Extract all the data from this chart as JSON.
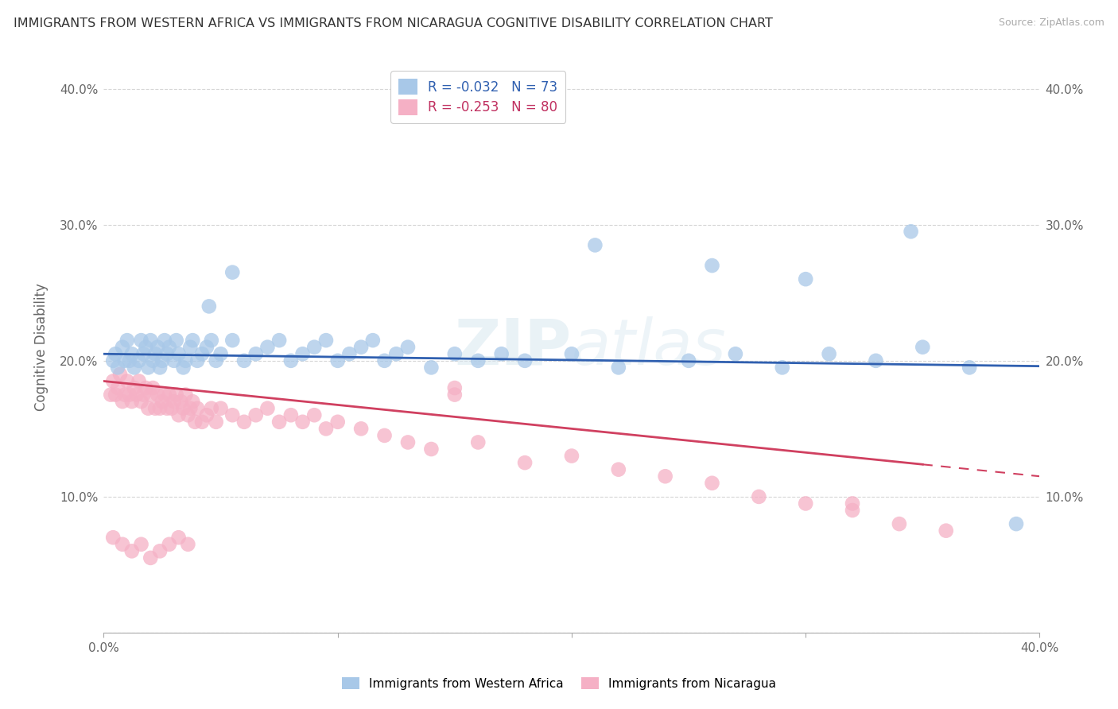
{
  "title": "IMMIGRANTS FROM WESTERN AFRICA VS IMMIGRANTS FROM NICARAGUA COGNITIVE DISABILITY CORRELATION CHART",
  "source": "Source: ZipAtlas.com",
  "ylabel": "Cognitive Disability",
  "xlim": [
    0.0,
    0.4
  ],
  "ylim": [
    0.0,
    0.42
  ],
  "ytick_vals": [
    0.0,
    0.1,
    0.2,
    0.3,
    0.4
  ],
  "xtick_vals": [
    0.0,
    0.1,
    0.2,
    0.3,
    0.4
  ],
  "legend_labels": [
    "Immigrants from Western Africa",
    "Immigrants from Nicaragua"
  ],
  "series1_color": "#a8c8e8",
  "series2_color": "#f5b0c5",
  "series1_line_color": "#3060b0",
  "series2_line_color": "#d04060",
  "R1": -0.032,
  "N1": 73,
  "R2": -0.253,
  "N2": 80,
  "watermark": "ZIPatlas",
  "background_color": "#ffffff",
  "grid_color": "#cccccc",
  "title_color": "#333333",
  "series1_x": [
    0.004,
    0.005,
    0.006,
    0.008,
    0.009,
    0.01,
    0.011,
    0.012,
    0.013,
    0.015,
    0.016,
    0.017,
    0.018,
    0.019,
    0.02,
    0.021,
    0.022,
    0.023,
    0.024,
    0.025,
    0.026,
    0.027,
    0.028,
    0.03,
    0.031,
    0.032,
    0.034,
    0.035,
    0.037,
    0.038,
    0.04,
    0.042,
    0.044,
    0.046,
    0.048,
    0.05,
    0.055,
    0.06,
    0.065,
    0.07,
    0.075,
    0.08,
    0.085,
    0.09,
    0.095,
    0.1,
    0.105,
    0.11,
    0.115,
    0.12,
    0.125,
    0.13,
    0.14,
    0.15,
    0.16,
    0.17,
    0.18,
    0.2,
    0.22,
    0.25,
    0.27,
    0.29,
    0.31,
    0.33,
    0.35,
    0.37,
    0.39,
    0.045,
    0.055,
    0.21,
    0.26,
    0.3,
    0.345
  ],
  "series1_y": [
    0.2,
    0.205,
    0.195,
    0.21,
    0.2,
    0.215,
    0.2,
    0.205,
    0.195,
    0.2,
    0.215,
    0.205,
    0.21,
    0.195,
    0.215,
    0.2,
    0.205,
    0.21,
    0.195,
    0.2,
    0.215,
    0.205,
    0.21,
    0.2,
    0.215,
    0.205,
    0.195,
    0.2,
    0.21,
    0.215,
    0.2,
    0.205,
    0.21,
    0.215,
    0.2,
    0.205,
    0.215,
    0.2,
    0.205,
    0.21,
    0.215,
    0.2,
    0.205,
    0.21,
    0.215,
    0.2,
    0.205,
    0.21,
    0.215,
    0.2,
    0.205,
    0.21,
    0.195,
    0.205,
    0.2,
    0.205,
    0.2,
    0.205,
    0.195,
    0.2,
    0.205,
    0.195,
    0.205,
    0.2,
    0.21,
    0.195,
    0.08,
    0.24,
    0.265,
    0.285,
    0.27,
    0.26,
    0.295
  ],
  "series2_x": [
    0.003,
    0.004,
    0.005,
    0.006,
    0.007,
    0.008,
    0.009,
    0.01,
    0.011,
    0.012,
    0.013,
    0.014,
    0.015,
    0.016,
    0.017,
    0.018,
    0.019,
    0.02,
    0.021,
    0.022,
    0.023,
    0.024,
    0.025,
    0.026,
    0.027,
    0.028,
    0.029,
    0.03,
    0.031,
    0.032,
    0.033,
    0.034,
    0.035,
    0.036,
    0.037,
    0.038,
    0.039,
    0.04,
    0.042,
    0.044,
    0.046,
    0.048,
    0.05,
    0.055,
    0.06,
    0.065,
    0.07,
    0.075,
    0.08,
    0.085,
    0.09,
    0.095,
    0.1,
    0.11,
    0.12,
    0.13,
    0.14,
    0.15,
    0.16,
    0.18,
    0.2,
    0.22,
    0.24,
    0.26,
    0.28,
    0.3,
    0.32,
    0.34,
    0.36,
    0.004,
    0.008,
    0.012,
    0.016,
    0.02,
    0.024,
    0.028,
    0.032,
    0.036,
    0.15,
    0.32
  ],
  "series2_y": [
    0.175,
    0.185,
    0.175,
    0.18,
    0.19,
    0.17,
    0.175,
    0.185,
    0.175,
    0.17,
    0.18,
    0.175,
    0.185,
    0.17,
    0.175,
    0.18,
    0.165,
    0.175,
    0.18,
    0.165,
    0.175,
    0.165,
    0.17,
    0.175,
    0.165,
    0.175,
    0.165,
    0.17,
    0.175,
    0.16,
    0.17,
    0.165,
    0.175,
    0.16,
    0.165,
    0.17,
    0.155,
    0.165,
    0.155,
    0.16,
    0.165,
    0.155,
    0.165,
    0.16,
    0.155,
    0.16,
    0.165,
    0.155,
    0.16,
    0.155,
    0.16,
    0.15,
    0.155,
    0.15,
    0.145,
    0.14,
    0.135,
    0.175,
    0.14,
    0.125,
    0.13,
    0.12,
    0.115,
    0.11,
    0.1,
    0.095,
    0.09,
    0.08,
    0.075,
    0.07,
    0.065,
    0.06,
    0.065,
    0.055,
    0.06,
    0.065,
    0.07,
    0.065,
    0.18,
    0.095
  ]
}
